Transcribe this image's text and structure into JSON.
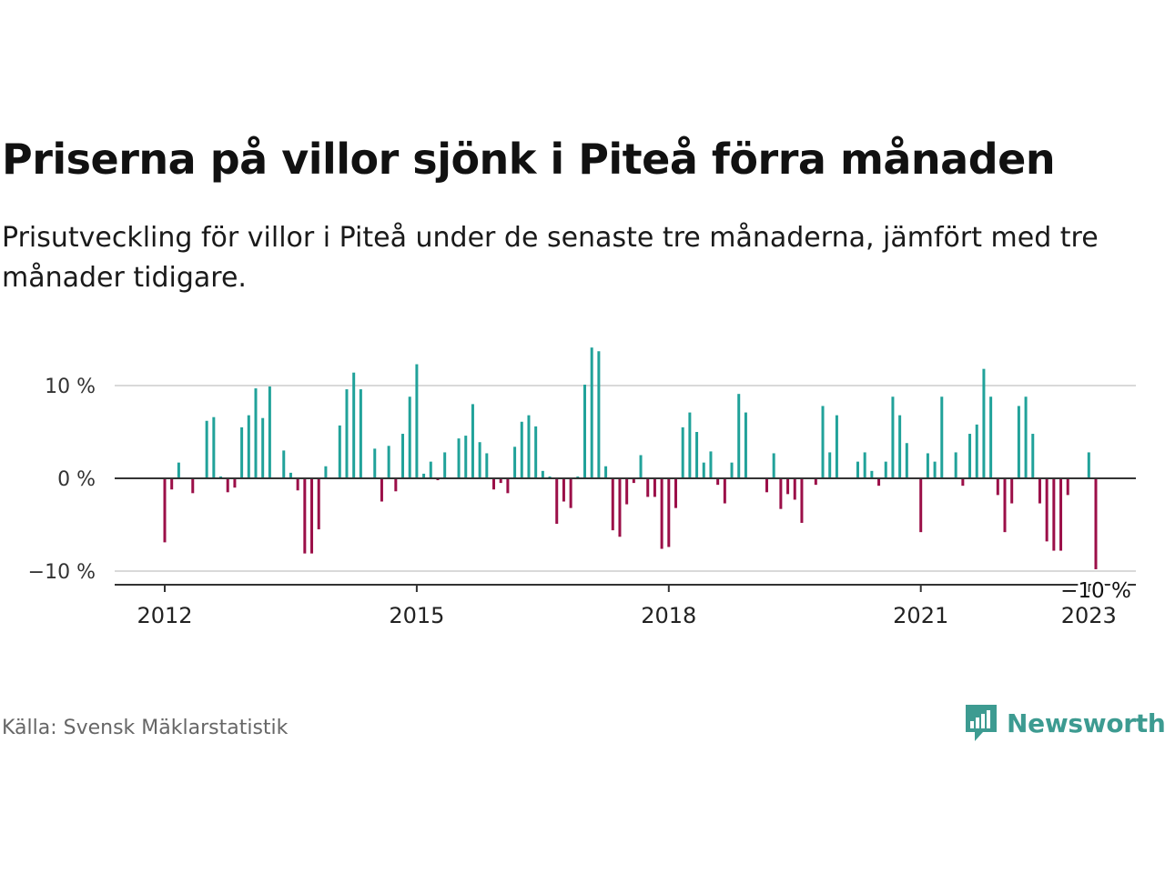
{
  "title": "Priserna på villor sjönk i Piteå förra månaden",
  "subtitle": "Prisutveckling för villor i Piteå under de senaste tre månaderna, jämfört med tre månader tidigare.",
  "source": "Källa: Svensk Mäklarstatistik",
  "brand": "Newsworthy",
  "colors": {
    "positive": "#21a29a",
    "negative": "#9b0f48",
    "brand": "#3d9b91",
    "grid": "#d9d9d9",
    "axis": "#333333"
  },
  "chart_data": {
    "type": "bar",
    "title": "Priserna på villor sjönk i Piteå förra månaden",
    "xlabel": "",
    "ylabel": "",
    "ylim": [
      -11.5,
      15
    ],
    "yticks": [
      {
        "value": 10,
        "label": "10 %"
      },
      {
        "value": 0,
        "label": "0 %"
      },
      {
        "value": -10,
        "label": "−10 %"
      }
    ],
    "xticks": [
      {
        "value": 2012,
        "label": "2012"
      },
      {
        "value": 2015,
        "label": "2015"
      },
      {
        "value": 2018,
        "label": "2018"
      },
      {
        "value": 2021,
        "label": "2021"
      },
      {
        "value": 2023,
        "label": "2023"
      }
    ],
    "start": {
      "year": 2012,
      "month": 1
    },
    "unit": "%",
    "values": [
      -6.9,
      -1.2,
      1.7,
      0,
      -1.6,
      0,
      6.2,
      6.6,
      0.2,
      -1.5,
      -1.0,
      5.5,
      6.8,
      9.7,
      6.5,
      9.9,
      0,
      3.0,
      0.6,
      -1.3,
      -8.1,
      -8.1,
      -5.5,
      1.3,
      0,
      5.7,
      9.6,
      11.4,
      9.6,
      0,
      3.2,
      -2.5,
      3.5,
      -1.4,
      4.8,
      8.8,
      12.3,
      0.5,
      1.8,
      -0.2,
      2.8,
      0,
      4.3,
      4.6,
      8.0,
      3.9,
      2.7,
      -1.2,
      -0.5,
      -1.6,
      3.4,
      6.1,
      6.8,
      5.6,
      0.8,
      0.2,
      -4.9,
      -2.5,
      -3.2,
      0.2,
      10.1,
      14.1,
      13.7,
      1.3,
      -5.6,
      -6.3,
      -2.8,
      -0.5,
      2.5,
      -2.0,
      -2.0,
      -7.6,
      -7.4,
      -3.2,
      5.5,
      7.1,
      5.0,
      1.7,
      2.9,
      -0.7,
      -2.7,
      1.7,
      9.1,
      7.1,
      0,
      0,
      -1.5,
      2.7,
      -3.3,
      -1.7,
      -2.3,
      -4.8,
      0,
      -0.7,
      7.8,
      2.8,
      6.8,
      0,
      0,
      1.8,
      2.8,
      0.8,
      -0.8,
      1.8,
      8.8,
      6.8,
      3.8,
      0,
      -5.8,
      2.7,
      1.8,
      8.8,
      0,
      2.8,
      -0.8,
      4.8,
      5.8,
      11.8,
      8.8,
      -1.8,
      -5.8,
      -2.7,
      7.8,
      8.8,
      4.8,
      -2.7,
      -6.8,
      -7.8,
      -7.8,
      -1.8,
      0,
      0,
      2.8,
      -9.8
    ],
    "last_label": "−10 %"
  }
}
